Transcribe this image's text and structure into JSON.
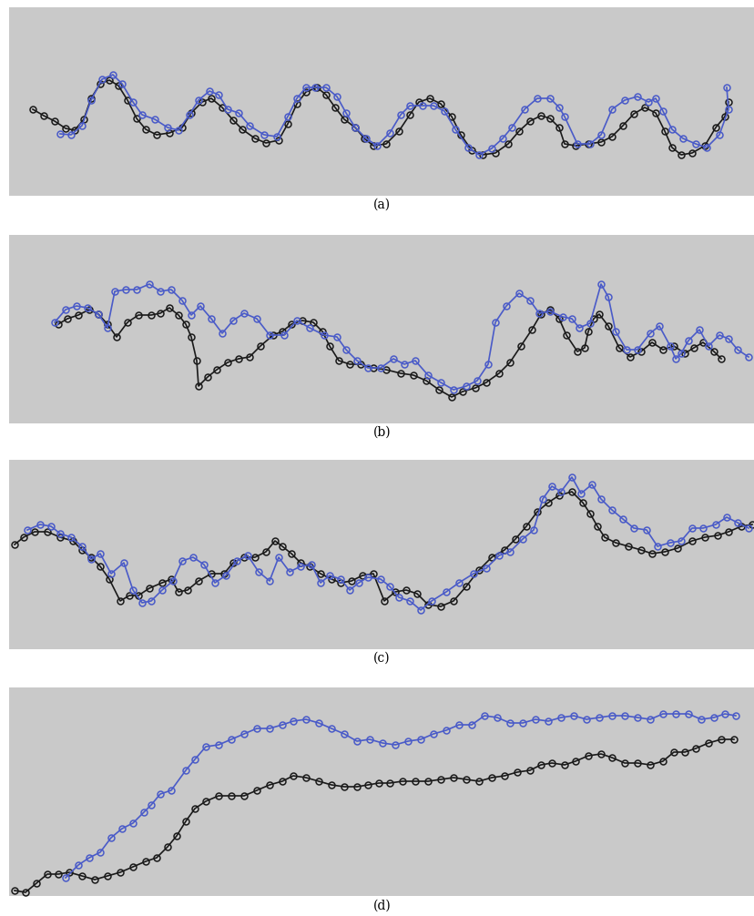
{
  "chart_data": [
    {
      "type": "line",
      "title": "(a)",
      "xlim": [
        10,
        829
      ],
      "ylim": [
        215,
        8
      ],
      "tick_labels": false,
      "series": [
        {
          "color": "#1a1a1a",
          "marker": "o",
          "line_style": "solid",
          "x": [
            36,
            48,
            60,
            72,
            82,
            92,
            100,
            110,
            120,
            130,
            140,
            150,
            160,
            172,
            186,
            200,
            210,
            222,
            232,
            244,
            256,
            266,
            280,
            292,
            306,
            316,
            326,
            336,
            348,
            358,
            368,
            378,
            390,
            400,
            410,
            424,
            438,
            450,
            460,
            472,
            484,
            496,
            506,
            518,
            530,
            544,
            558,
            570,
            582,
            594,
            604,
            614,
            620,
            632,
            646,
            660,
            672,
            684,
            696,
            708,
            720,
            730,
            738,
            748,
            760,
            774,
            786,
            796,
            800
          ],
          "values": [
            120,
            127,
            133,
            141,
            143,
            131,
            108,
            92,
            88,
            94,
            110,
            130,
            142,
            148,
            146,
            140,
            124,
            112,
            108,
            118,
            132,
            142,
            152,
            157,
            154,
            136,
            114,
            101,
            96,
            104,
            118,
            131,
            140,
            152,
            160,
            158,
            144,
            126,
            112,
            108,
            114,
            128,
            148,
            165,
            170,
            168,
            158,
            144,
            133,
            127,
            130,
            140,
            158,
            160,
            158,
            156,
            150,
            138,
            125,
            118,
            124,
            144,
            162,
            170,
            168,
            160,
            140,
            128,
            112
          ]
        },
        {
          "color": "#4a5bc8",
          "marker": "o",
          "line_style": "solid",
          "x": [
            66,
            78,
            90,
            100,
            112,
            124,
            134,
            146,
            156,
            170,
            184,
            196,
            208,
            218,
            230,
            240,
            250,
            262,
            274,
            290,
            304,
            316,
            326,
            336,
            346,
            358,
            370,
            380,
            390,
            402,
            414,
            428,
            440,
            450,
            464,
            476,
            488,
            500,
            514,
            526,
            540,
            552,
            562,
            576,
            590,
            604,
            614,
            620,
            634,
            648,
            660,
            672,
            686,
            700,
            712,
            720,
            728,
            738,
            750,
            764,
            776,
            790,
            800,
            798
          ],
          "values": [
            147,
            148,
            138,
            110,
            87,
            82,
            92,
            112,
            126,
            131,
            140,
            143,
            126,
            110,
            100,
            104,
            120,
            124,
            138,
            148,
            150,
            128,
            108,
            96,
            96,
            96,
            106,
            124,
            140,
            152,
            160,
            146,
            126,
            116,
            116,
            116,
            122,
            142,
            162,
            170,
            163,
            152,
            140,
            120,
            108,
            108,
            118,
            128,
            158,
            158,
            148,
            120,
            110,
            106,
            112,
            108,
            122,
            142,
            152,
            158,
            162,
            148,
            120,
            96
          ]
        }
      ]
    },
    {
      "type": "line",
      "title": "(b)",
      "xlim": [
        10,
        829
      ],
      "ylim": [
        465,
        258
      ],
      "tick_labels": false,
      "series": [
        {
          "color": "#1a1a1a",
          "marker": "o",
          "line_style": "solid",
          "x": [
            64,
            74,
            86,
            98,
            108,
            118,
            128,
            140,
            152,
            166,
            176,
            186,
            196,
            204,
            210,
            216,
            218,
            228,
            238,
            250,
            262,
            274,
            286,
            300,
            310,
            320,
            332,
            344,
            354,
            362,
            372,
            384,
            396,
            410,
            424,
            440,
            454,
            468,
            482,
            496,
            508,
            522,
            534,
            548,
            560,
            572,
            584,
            594,
            604,
            614,
            622,
            634,
            642,
            646,
            652,
            658,
            668,
            680,
            692,
            704,
            716,
            728,
            740,
            752,
            762,
            772,
            784,
            792
          ],
          "values": [
            356,
            350,
            346,
            340,
            345,
            356,
            370,
            354,
            346,
            346,
            344,
            338,
            346,
            356,
            370,
            396,
            424,
            414,
            406,
            398,
            394,
            392,
            380,
            368,
            364,
            356,
            352,
            354,
            364,
            380,
            396,
            400,
            400,
            404,
            406,
            410,
            412,
            418,
            428,
            436,
            430,
            426,
            420,
            410,
            398,
            380,
            362,
            345,
            340,
            350,
            368,
            386,
            382,
            364,
            350,
            345,
            358,
            382,
            392,
            386,
            376,
            384,
            380,
            388,
            382,
            376,
            386,
            394
          ]
        },
        {
          "color": "#4a5bc8",
          "marker": "o",
          "line_style": "solid",
          "x": [
            60,
            72,
            84,
            96,
            108,
            118,
            126,
            138,
            150,
            164,
            176,
            188,
            200,
            210,
            220,
            232,
            244,
            256,
            268,
            282,
            296,
            312,
            326,
            340,
            356,
            370,
            380,
            392,
            404,
            418,
            432,
            444,
            456,
            470,
            484,
            498,
            512,
            524,
            536,
            544,
            556,
            570,
            582,
            592,
            604,
            618,
            628,
            636,
            648,
            660,
            668,
            676,
            688,
            700,
            714,
            724,
            736,
            742,
            748,
            756,
            768,
            778,
            790,
            800,
            810,
            822
          ],
          "values": [
            354,
            340,
            336,
            338,
            345,
            360,
            320,
            318,
            318,
            312,
            320,
            318,
            330,
            346,
            336,
            350,
            366,
            352,
            344,
            350,
            368,
            368,
            352,
            360,
            368,
            370,
            384,
            396,
            404,
            404,
            394,
            400,
            396,
            412,
            420,
            428,
            424,
            418,
            400,
            354,
            336,
            322,
            330,
            344,
            342,
            348,
            350,
            360,
            355,
            312,
            326,
            364,
            384,
            384,
            366,
            358,
            380,
            394,
            388,
            374,
            362,
            380,
            368,
            372,
            384,
            392
          ]
        }
      ]
    },
    {
      "type": "line",
      "title": "(c)",
      "xlim": [
        10,
        829
      ],
      "ylim": [
        713,
        505
      ],
      "tick_labels": false,
      "series": [
        {
          "color": "#1a1a1a",
          "marker": "o",
          "line_style": "solid",
          "x": [
            16,
            26,
            38,
            52,
            66,
            80,
            90,
            100,
            110,
            120,
            132,
            142,
            152,
            164,
            178,
            188,
            196,
            206,
            218,
            232,
            246,
            256,
            268,
            280,
            292,
            302,
            310,
            320,
            330,
            340,
            352,
            364,
            374,
            386,
            398,
            410,
            422,
            434,
            446,
            458,
            470,
            484,
            498,
            512,
            526,
            540,
            554,
            566,
            578,
            590,
            602,
            614,
            628,
            640,
            648,
            656,
            664,
            676,
            690,
            704,
            716,
            730,
            744,
            760,
            774,
            788,
            800,
            814,
            826
          ],
          "values": [
            598,
            590,
            584,
            584,
            590,
            594,
            604,
            612,
            622,
            636,
            660,
            654,
            654,
            646,
            640,
            636,
            650,
            648,
            638,
            630,
            630,
            618,
            612,
            612,
            606,
            594,
            600,
            608,
            618,
            622,
            630,
            636,
            640,
            638,
            632,
            630,
            660,
            650,
            648,
            652,
            664,
            666,
            660,
            644,
            626,
            612,
            604,
            592,
            578,
            562,
            552,
            544,
            540,
            552,
            564,
            578,
            590,
            596,
            600,
            604,
            608,
            606,
            602,
            594,
            590,
            588,
            584,
            578,
            576
          ]
        },
        {
          "color": "#4a5bc8",
          "marker": "o",
          "line_style": "solid",
          "x": [
            30,
            44,
            56,
            66,
            78,
            90,
            100,
            110,
            122,
            136,
            146,
            156,
            166,
            178,
            190,
            200,
            212,
            224,
            236,
            248,
            260,
            272,
            284,
            296,
            306,
            318,
            330,
            342,
            352,
            362,
            374,
            384,
            394,
            404,
            418,
            428,
            438,
            450,
            462,
            474,
            490,
            504,
            520,
            534,
            548,
            560,
            574,
            586,
            596,
            606,
            616,
            628,
            638,
            650,
            660,
            672,
            684,
            696,
            710,
            722,
            736,
            748,
            760,
            772,
            786,
            798,
            810,
            822
          ],
          "values": [
            582,
            576,
            578,
            586,
            590,
            600,
            614,
            608,
            630,
            618,
            648,
            662,
            660,
            648,
            638,
            616,
            612,
            620,
            640,
            632,
            616,
            610,
            628,
            638,
            612,
            628,
            622,
            620,
            640,
            632,
            636,
            648,
            640,
            634,
            636,
            644,
            656,
            660,
            670,
            660,
            650,
            640,
            630,
            624,
            610,
            606,
            592,
            582,
            548,
            534,
            540,
            524,
            542,
            532,
            548,
            560,
            570,
            580,
            582,
            600,
            596,
            594,
            580,
            580,
            576,
            568,
            574,
            580
          ]
        }
      ]
    },
    {
      "type": "line",
      "title": "(d)",
      "xlim": [
        10,
        829
      ],
      "ylim": [
        984,
        755
      ],
      "tick_labels": false,
      "series": [
        {
          "color": "#1a1a1a",
          "marker": "o",
          "line_style": "solid",
          "x": [
            16,
            28,
            40,
            52,
            64,
            76,
            90,
            104,
            118,
            132,
            146,
            160,
            172,
            184,
            194,
            204,
            214,
            226,
            240,
            254,
            268,
            282,
            296,
            310,
            322,
            336,
            350,
            364,
            378,
            392,
            404,
            416,
            428,
            442,
            456,
            470,
            484,
            498,
            512,
            526,
            540,
            554,
            568,
            582,
            594,
            606,
            620,
            632,
            646,
            660,
            672,
            686,
            700,
            714,
            728,
            740,
            752,
            764,
            778,
            792,
            806
          ],
          "values": [
            978,
            980,
            970,
            960,
            960,
            958,
            962,
            966,
            962,
            958,
            952,
            946,
            942,
            930,
            918,
            902,
            888,
            880,
            874,
            874,
            874,
            868,
            862,
            858,
            852,
            854,
            858,
            862,
            864,
            864,
            862,
            860,
            860,
            858,
            858,
            858,
            856,
            854,
            856,
            858,
            854,
            852,
            848,
            846,
            840,
            838,
            840,
            836,
            830,
            828,
            832,
            838,
            838,
            840,
            836,
            826,
            826,
            822,
            816,
            812,
            812
          ]
        },
        {
          "color": "#4a5bc8",
          "marker": "o",
          "line_style": "solid",
          "x": [
            72,
            86,
            98,
            110,
            122,
            134,
            146,
            158,
            166,
            176,
            188,
            204,
            214,
            226,
            240,
            254,
            268,
            282,
            296,
            310,
            322,
            336,
            350,
            364,
            378,
            392,
            406,
            420,
            434,
            448,
            462,
            476,
            490,
            504,
            518,
            532,
            546,
            560,
            574,
            588,
            602,
            616,
            630,
            644,
            658,
            672,
            686,
            700,
            714,
            728,
            742,
            756,
            770,
            784,
            796,
            808
          ],
          "values": [
            964,
            950,
            942,
            936,
            920,
            910,
            904,
            892,
            884,
            872,
            868,
            846,
            834,
            820,
            818,
            812,
            806,
            800,
            800,
            796,
            792,
            790,
            794,
            800,
            806,
            814,
            812,
            816,
            818,
            814,
            812,
            806,
            802,
            796,
            796,
            786,
            788,
            794,
            794,
            790,
            792,
            788,
            786,
            790,
            788,
            786,
            786,
            788,
            790,
            784,
            784,
            784,
            790,
            788,
            784,
            786
          ]
        }
      ]
    }
  ]
}
